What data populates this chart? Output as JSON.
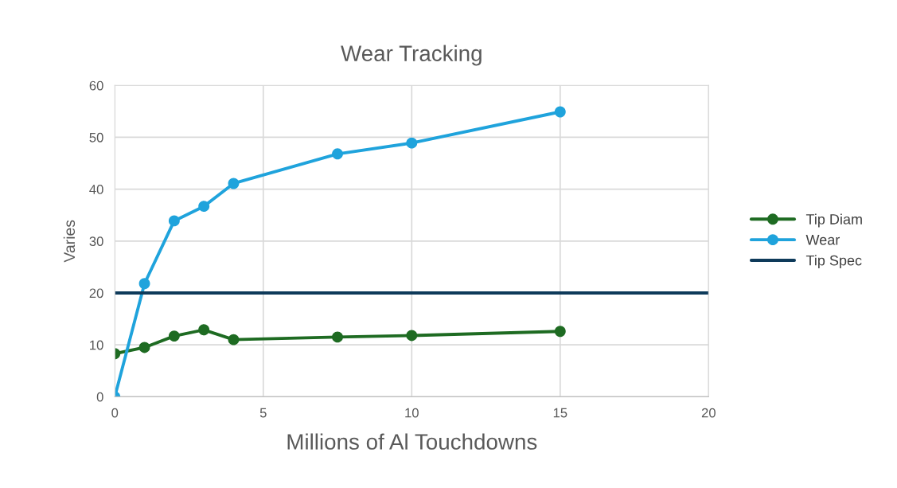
{
  "chart_data": {
    "type": "line",
    "title": "Wear Tracking",
    "xlabel": "Millions of Al Touchdowns",
    "ylabel": "Varies",
    "x": [
      0,
      1,
      2,
      3,
      4,
      7.5,
      10,
      15
    ],
    "series": [
      {
        "name": "Tip Diam",
        "color": "#1e6b22",
        "values": [
          8.3,
          9.5,
          11.7,
          12.9,
          11.0,
          11.5,
          11.8,
          12.6
        ],
        "marker": "circle"
      },
      {
        "name": "Wear",
        "color": "#1fa3dc",
        "values": [
          0,
          21.8,
          33.9,
          36.7,
          41.1,
          46.8,
          48.9,
          54.9
        ],
        "marker": "circle"
      },
      {
        "name": "Tip Spec",
        "color": "#0e3a5a",
        "x": [
          0,
          20
        ],
        "values": [
          20,
          20
        ],
        "marker": "none"
      }
    ],
    "xlim": [
      0,
      20
    ],
    "xticks": [
      0,
      5,
      10,
      15,
      20
    ],
    "ylim": [
      0,
      60
    ],
    "yticks": [
      0,
      10,
      20,
      30,
      40,
      50,
      60
    ],
    "grid": true,
    "legend": "right",
    "line_style": "solid"
  }
}
